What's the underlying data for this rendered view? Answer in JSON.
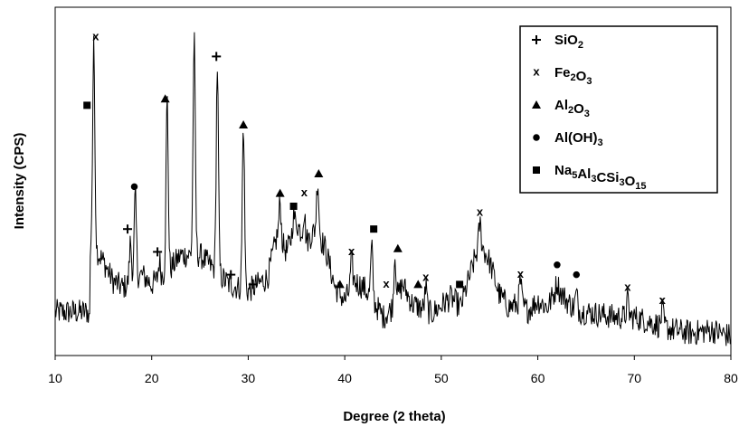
{
  "chart_data": {
    "type": "line",
    "xlabel": "Degree (2 theta)",
    "ylabel": "Intensity (CPS)",
    "xlim": [
      10,
      80
    ],
    "ylim": [
      0,
      100
    ],
    "x_ticks": [
      "10",
      "20",
      "30",
      "40",
      "50",
      "60",
      "70",
      "80"
    ],
    "y_ticks_shown": false,
    "grid": false,
    "legend_position": "top-right",
    "series": [
      {
        "baseline": [
          [
            10,
            12.5
          ],
          [
            13.5,
            12.5
          ],
          [
            13.7,
            34
          ],
          [
            15,
            28
          ],
          [
            16,
            22
          ],
          [
            17,
            20
          ],
          [
            19,
            24
          ],
          [
            20,
            21
          ],
          [
            22,
            26
          ],
          [
            23,
            30
          ],
          [
            25,
            30
          ],
          [
            26,
            27
          ],
          [
            28,
            21
          ],
          [
            30,
            19
          ],
          [
            32,
            23
          ],
          [
            33,
            36
          ],
          [
            34,
            31
          ],
          [
            35,
            40
          ],
          [
            36,
            34
          ],
          [
            37,
            38
          ],
          [
            38,
            32
          ],
          [
            39,
            20
          ],
          [
            40,
            16
          ],
          [
            41,
            22
          ],
          [
            42,
            20
          ],
          [
            44,
            11
          ],
          [
            45,
            14
          ],
          [
            46,
            21
          ],
          [
            47,
            15
          ],
          [
            49,
            12
          ],
          [
            51,
            17
          ],
          [
            52,
            14
          ],
          [
            53,
            24
          ],
          [
            54,
            34
          ],
          [
            55,
            28
          ],
          [
            56,
            18
          ],
          [
            57,
            14
          ],
          [
            58,
            15
          ],
          [
            59,
            13
          ],
          [
            60,
            16
          ],
          [
            61,
            14
          ],
          [
            62,
            20
          ],
          [
            63,
            16
          ],
          [
            64,
            13
          ],
          [
            66,
            12
          ],
          [
            68,
            11
          ],
          [
            70,
            11
          ],
          [
            72,
            9
          ],
          [
            74,
            7
          ],
          [
            76,
            6
          ],
          [
            78,
            7
          ],
          [
            80,
            5
          ]
        ],
        "peaks": [
          [
            14.0,
            94
          ],
          [
            17.8,
            34
          ],
          [
            18.3,
            48
          ],
          [
            20.8,
            28
          ],
          [
            21.6,
            78
          ],
          [
            24.4,
            96
          ],
          [
            26.8,
            88
          ],
          [
            29.5,
            70
          ],
          [
            33.3,
            46
          ],
          [
            34.7,
            42
          ],
          [
            35.8,
            43
          ],
          [
            37.2,
            53
          ],
          [
            40.7,
            28
          ],
          [
            42.8,
            32
          ],
          [
            45.2,
            30
          ],
          [
            48.4,
            20
          ],
          [
            54.0,
            40
          ],
          [
            58.2,
            22
          ],
          [
            62.0,
            22
          ],
          [
            64.0,
            18
          ],
          [
            69.3,
            16
          ],
          [
            72.9,
            13
          ]
        ]
      }
    ],
    "legend": [
      {
        "symbol": "plus",
        "glyph": "+",
        "label_main": "SiO",
        "label_subs": [
          [
            "",
            "2"
          ]
        ]
      },
      {
        "symbol": "cross",
        "glyph": "x",
        "label_main": "Fe",
        "label_subs": [
          [
            "Fe",
            "2"
          ],
          [
            "O",
            "3"
          ]
        ]
      },
      {
        "symbol": "triangle",
        "glyph": "▲",
        "label_main": "Al",
        "label_subs": [
          [
            "Al",
            "2"
          ],
          [
            "O",
            "3"
          ]
        ]
      },
      {
        "symbol": "circle",
        "glyph": "●",
        "label_main": "Al(OH)",
        "label_subs": [
          [
            "Al(OH)",
            "3"
          ]
        ]
      },
      {
        "symbol": "square",
        "glyph": "■",
        "label_main": "Na",
        "label_subs": [
          [
            "Na",
            "5"
          ],
          [
            "Al",
            "3"
          ],
          [
            "CSi",
            "3"
          ],
          [
            "O",
            "15"
          ]
        ]
      }
    ],
    "phase_markers": [
      {
        "phase": "square",
        "x": 13.3,
        "level": 76
      },
      {
        "phase": "cross",
        "x": 14.2,
        "level": 97
      },
      {
        "phase": "plus",
        "x": 17.5,
        "level": 38
      },
      {
        "phase": "circle",
        "x": 18.2,
        "level": 51
      },
      {
        "phase": "plus",
        "x": 20.6,
        "level": 31
      },
      {
        "phase": "triangle",
        "x": 21.4,
        "level": 78
      },
      {
        "phase": "plus",
        "x": 26.7,
        "level": 91
      },
      {
        "phase": "triangle",
        "x": 29.5,
        "level": 70
      },
      {
        "phase": "plus",
        "x": 28.2,
        "level": 24
      },
      {
        "phase": "plus",
        "x": 30.5,
        "level": 21
      },
      {
        "phase": "triangle",
        "x": 33.3,
        "level": 49
      },
      {
        "phase": "square",
        "x": 34.7,
        "level": 45
      },
      {
        "phase": "cross",
        "x": 35.8,
        "level": 49
      },
      {
        "phase": "triangle",
        "x": 37.3,
        "level": 55
      },
      {
        "phase": "triangle",
        "x": 39.5,
        "level": 21
      },
      {
        "phase": "cross",
        "x": 40.7,
        "level": 31
      },
      {
        "phase": "square",
        "x": 43.0,
        "level": 38
      },
      {
        "phase": "cross",
        "x": 44.3,
        "level": 21
      },
      {
        "phase": "triangle",
        "x": 45.5,
        "level": 32
      },
      {
        "phase": "triangle",
        "x": 47.6,
        "level": 21
      },
      {
        "phase": "cross",
        "x": 48.4,
        "level": 23
      },
      {
        "phase": "square",
        "x": 51.9,
        "level": 21
      },
      {
        "phase": "cross",
        "x": 54.0,
        "level": 43
      },
      {
        "phase": "cross",
        "x": 58.2,
        "level": 24
      },
      {
        "phase": "circle",
        "x": 62.0,
        "level": 27
      },
      {
        "phase": "circle",
        "x": 64.0,
        "level": 24
      },
      {
        "phase": "cross",
        "x": 69.3,
        "level": 20
      },
      {
        "phase": "cross",
        "x": 72.9,
        "level": 16
      }
    ]
  },
  "colors": {
    "line": "#000000",
    "axis": "#000000",
    "background": "#ffffff"
  }
}
